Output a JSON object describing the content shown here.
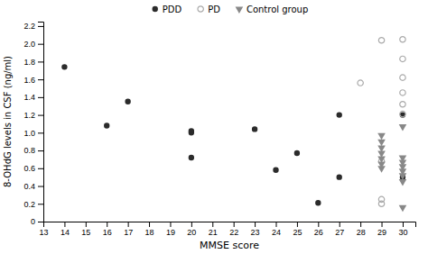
{
  "chart_data": {
    "type": "scatter",
    "xlabel": "MMSE score",
    "ylabel": "8-OHdG levels in CSF (ng/ml)",
    "series": [
      {
        "name": "PDD",
        "color": "#2b2b2b",
        "marker": "circle",
        "x": [
          14,
          16,
          17,
          20,
          20,
          20,
          23,
          24,
          25,
          26,
          27,
          27,
          30,
          30
        ],
        "values": [
          1.74,
          1.08,
          1.35,
          0.72,
          1.0,
          1.02,
          1.04,
          0.58,
          0.77,
          0.21,
          1.2,
          0.5,
          1.2,
          0.5
        ]
      },
      {
        "name": "PD",
        "color": "#aaaaaa",
        "marker": "circle-open",
        "x": [
          28,
          29,
          29,
          29,
          29,
          30,
          30,
          30,
          30,
          30,
          30
        ],
        "values": [
          1.56,
          2.04,
          0.25,
          0.2,
          0.68,
          2.05,
          1.83,
          1.62,
          1.45,
          1.32,
          1.21
        ]
      },
      {
        "name": "Control group",
        "color": "#888888",
        "marker": "triangle-down",
        "x": [
          29,
          29,
          29,
          29,
          29,
          29,
          29,
          30,
          30,
          30,
          30,
          30,
          30,
          30,
          30
        ],
        "values": [
          0.97,
          0.9,
          0.83,
          0.77,
          0.71,
          0.65,
          0.6,
          1.07,
          0.72,
          0.67,
          0.62,
          0.57,
          0.52,
          0.45,
          0.16
        ]
      }
    ],
    "xlim": [
      13,
      30.6
    ],
    "ylim": [
      0,
      2.25
    ],
    "xticks": [
      13,
      14,
      15,
      16,
      17,
      18,
      19,
      20,
      21,
      22,
      23,
      24,
      25,
      26,
      27,
      28,
      29,
      30
    ],
    "yticks": [
      0,
      0.2,
      0.4,
      0.6,
      0.8,
      {
        "value": 1.0,
        "label": "1.0"
      },
      1.2,
      1.4,
      1.6,
      1.8,
      {
        "value": 2.0,
        "label": "2.0"
      },
      2.2
    ],
    "grid": false,
    "legend": "top"
  }
}
